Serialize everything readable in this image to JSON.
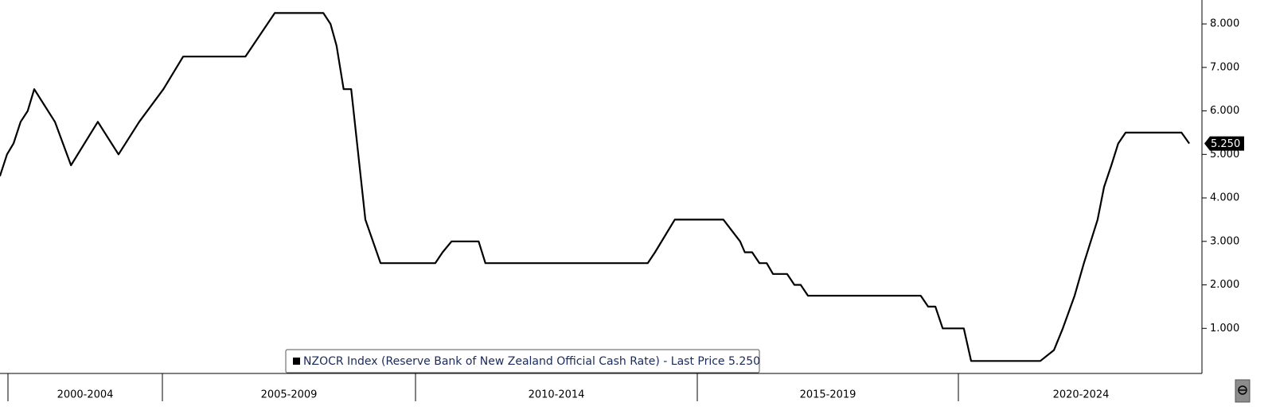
{
  "chart_data": {
    "type": "line",
    "x_groups": [
      "2000-2004",
      "2005-2009",
      "2010-2014",
      "2015-2019",
      "2020-2024"
    ],
    "ylim": [
      0,
      8.55
    ],
    "yticks": [
      {
        "value": 1,
        "label": "1.000"
      },
      {
        "value": 2,
        "label": "2.000"
      },
      {
        "value": 3,
        "label": "3.000"
      },
      {
        "value": 4,
        "label": "4.000"
      },
      {
        "value": 5,
        "label": "5.000"
      },
      {
        "value": 6,
        "label": "6.000"
      },
      {
        "value": 7,
        "label": "7.000"
      },
      {
        "value": 8,
        "label": "8.000"
      }
    ],
    "series": [
      {
        "name": "NZOCR Index (Reserve Bank of New Zealand Official Cash Rate) - Last Price 5.250",
        "color": "#000000",
        "x": [
          1999.74,
          1999.97,
          2000.18,
          2000.41,
          2000.64,
          2000.85,
          2001.52,
          2002.04,
          2002.91,
          2003.58,
          2004.25,
          2005.02,
          2005.41,
          2006.64,
          2007.22,
          2008.18,
          2008.32,
          2008.44,
          2008.58,
          2008.73,
          2009.01,
          2009.31,
          2010.35,
          2010.48,
          2010.64,
          2011.12,
          2011.24,
          2014.12,
          2014.25,
          2014.6,
          2015.5,
          2015.82,
          2015.91,
          2016.05,
          2016.19,
          2016.33,
          2016.45,
          2016.72,
          2016.86,
          2016.98,
          2017.12,
          2019.28,
          2019.42,
          2019.56,
          2019.7,
          2020.11,
          2020.26,
          2021.67,
          2021.95,
          2022.13,
          2022.37,
          2022.56,
          2022.84,
          2022.97,
          2023.12,
          2023.26,
          2023.41,
          2024.55,
          2024.71
        ],
        "values": [
          4.5,
          5.0,
          5.25,
          5.75,
          6.0,
          6.5,
          5.75,
          4.75,
          5.75,
          5.0,
          5.75,
          6.5,
          7.25,
          7.25,
          8.25,
          8.25,
          8.0,
          7.5,
          6.5,
          6.5,
          3.5,
          2.5,
          2.5,
          2.75,
          3.0,
          3.0,
          2.5,
          2.5,
          2.75,
          3.5,
          3.5,
          3.0,
          2.75,
          2.75,
          2.5,
          2.5,
          2.25,
          2.25,
          2.0,
          2.0,
          1.75,
          1.75,
          1.5,
          1.5,
          1.0,
          1.0,
          0.25,
          0.25,
          0.5,
          1.0,
          1.75,
          2.5,
          3.5,
          4.25,
          4.75,
          5.25,
          5.5,
          5.5,
          5.25
        ]
      }
    ],
    "last_price": {
      "value": 5.25,
      "label": "5.250"
    }
  }
}
